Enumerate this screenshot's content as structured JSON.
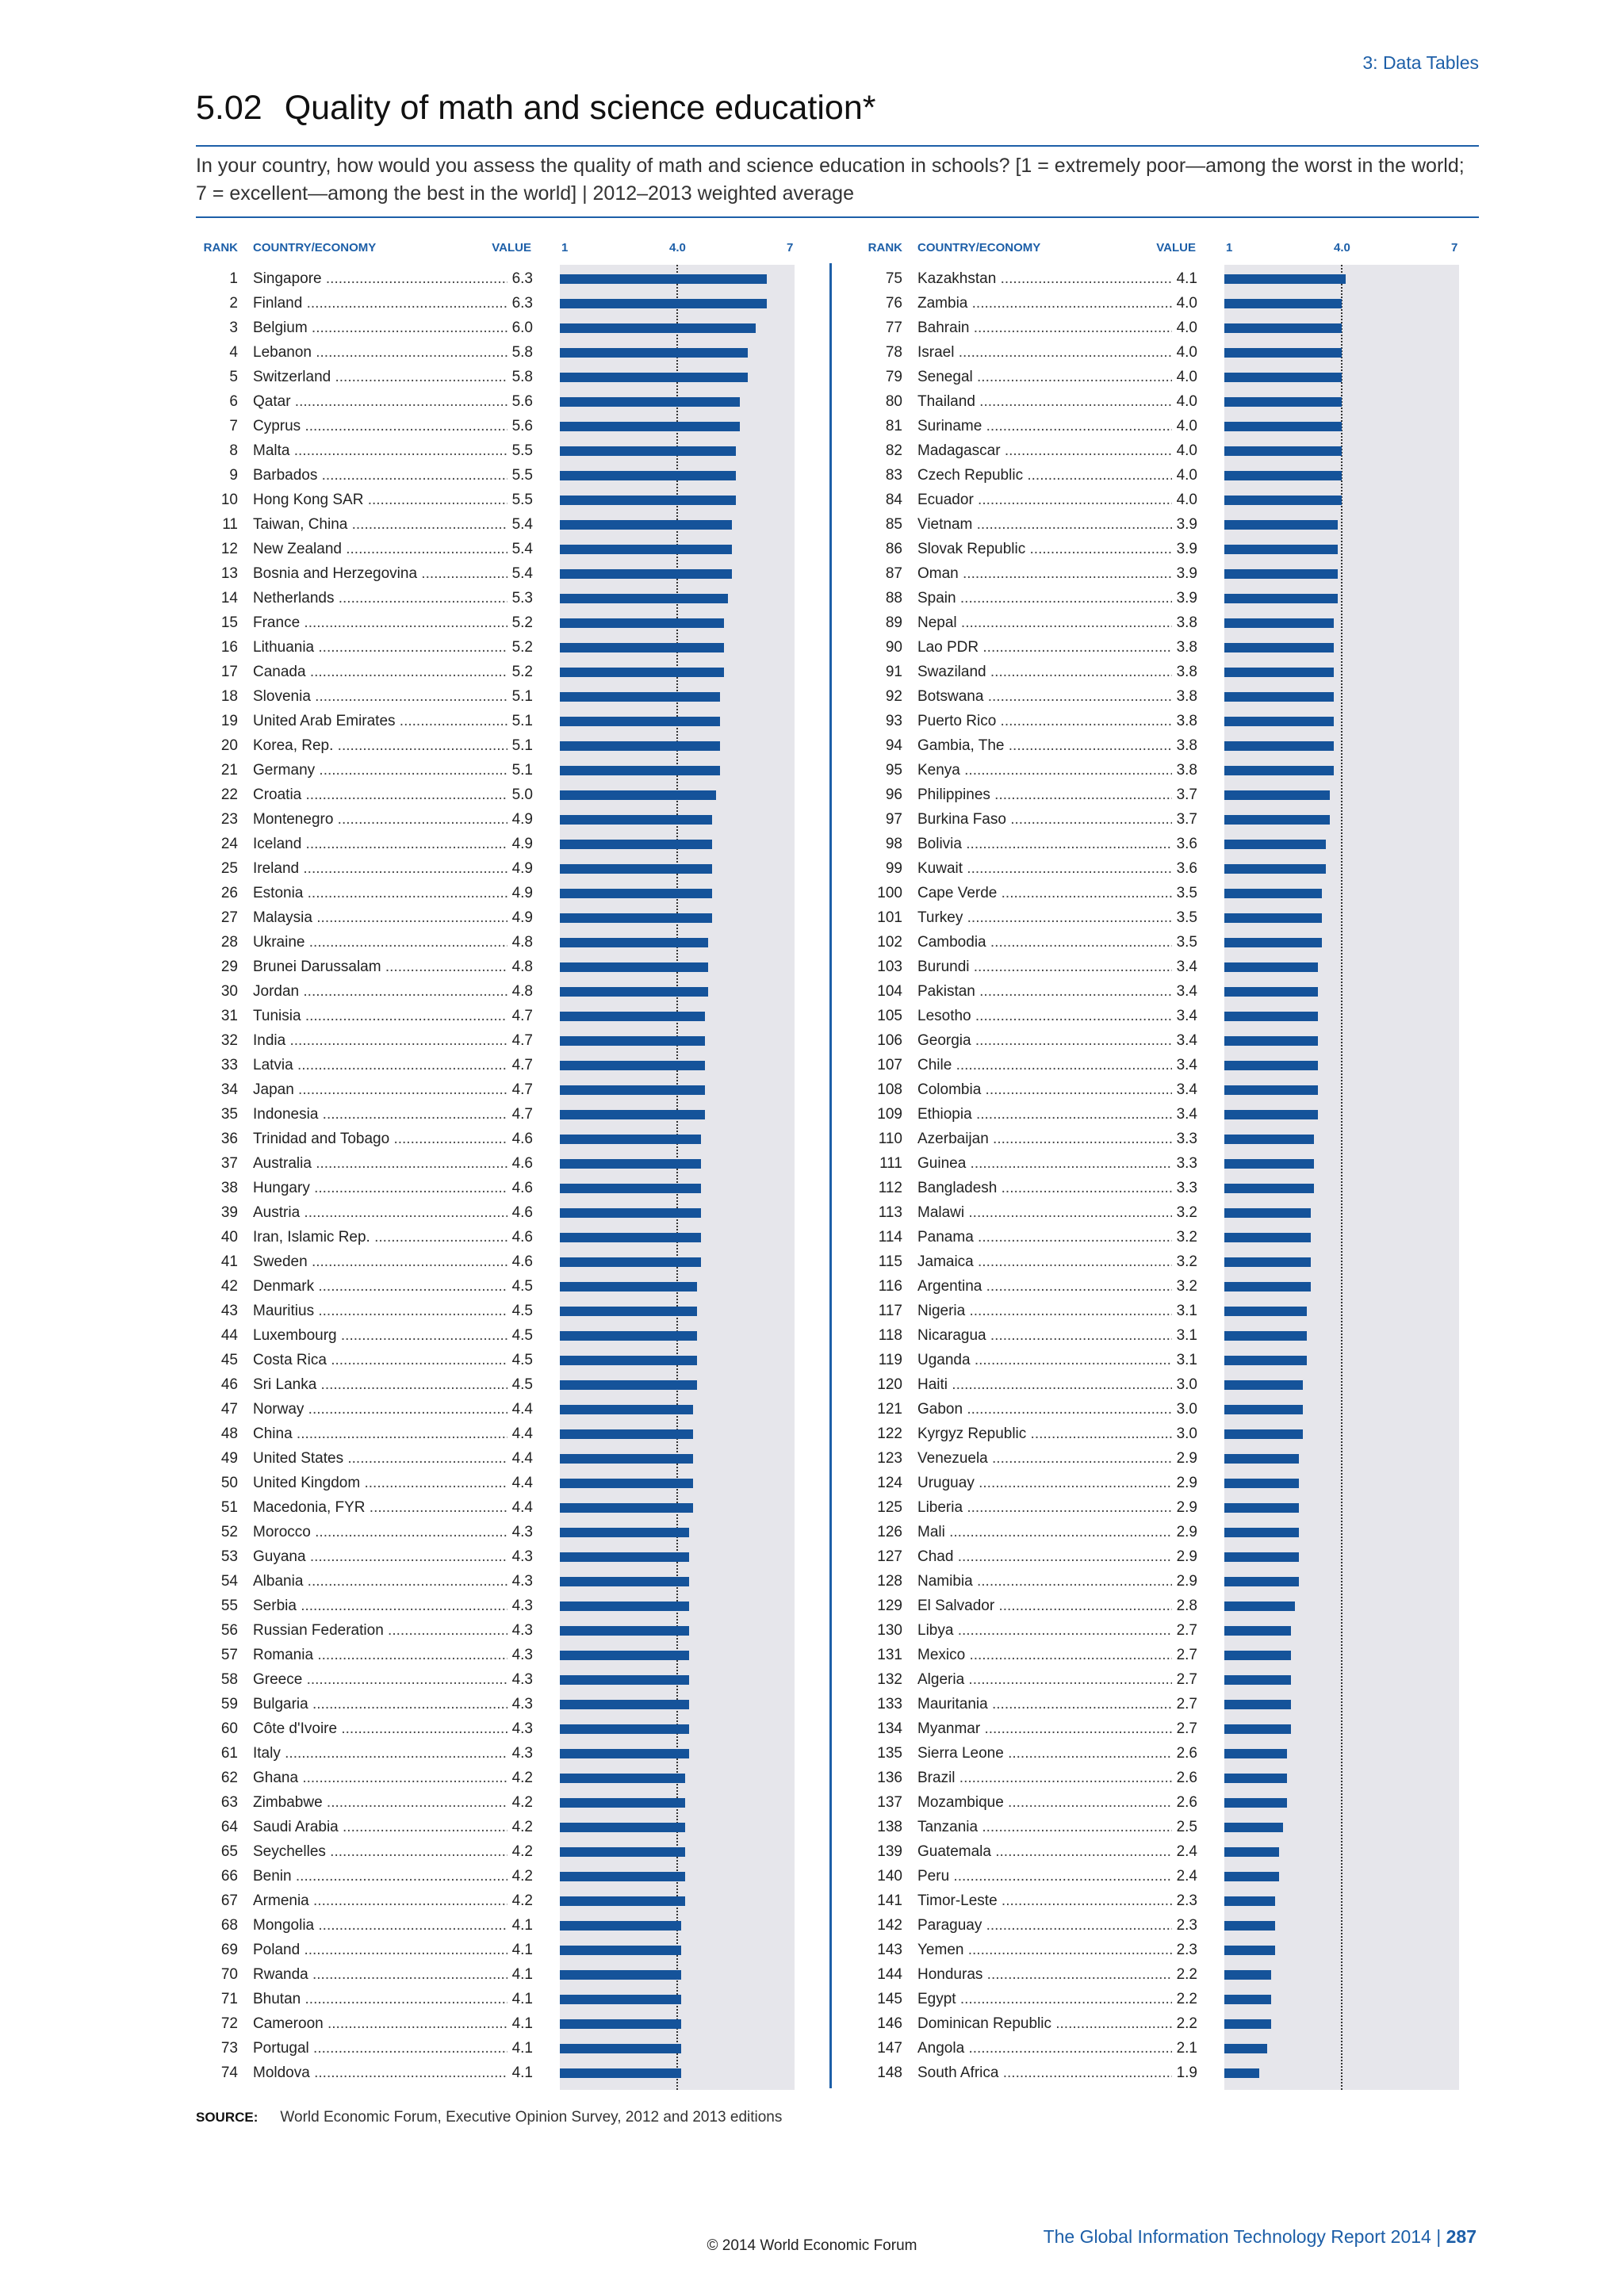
{
  "header": {
    "section": "3: Data Tables",
    "number": "5.02",
    "title": "Quality of math and science education*",
    "question": "In your country, how would you assess the quality of math and science education in schools? [1 = extremely poor—among the worst in the world; 7 = excellent—among the best in the world]  |  2012–2013 weighted average"
  },
  "columns": {
    "rank": "RANK",
    "country": "COUNTRY/ECONOMY",
    "value": "VALUE",
    "axis_min": "1",
    "axis_ref": "4.0",
    "axis_max": "7"
  },
  "chart_data": {
    "type": "bar",
    "orientation": "horizontal",
    "xlim": [
      1,
      7
    ],
    "reference_line": 4.0,
    "colors": {
      "bar": "#15539a",
      "plot_background": "#e6e6eb",
      "accent": "#1d5fa8"
    },
    "rows": [
      {
        "rank": 1,
        "country": "Singapore",
        "value": 6.3
      },
      {
        "rank": 2,
        "country": "Finland",
        "value": 6.3
      },
      {
        "rank": 3,
        "country": "Belgium",
        "value": 6.0
      },
      {
        "rank": 4,
        "country": "Lebanon",
        "value": 5.8
      },
      {
        "rank": 5,
        "country": "Switzerland",
        "value": 5.8
      },
      {
        "rank": 6,
        "country": "Qatar",
        "value": 5.6
      },
      {
        "rank": 7,
        "country": "Cyprus",
        "value": 5.6
      },
      {
        "rank": 8,
        "country": "Malta",
        "value": 5.5
      },
      {
        "rank": 9,
        "country": "Barbados",
        "value": 5.5
      },
      {
        "rank": 10,
        "country": "Hong Kong SAR",
        "value": 5.5
      },
      {
        "rank": 11,
        "country": "Taiwan, China",
        "value": 5.4
      },
      {
        "rank": 12,
        "country": "New Zealand",
        "value": 5.4
      },
      {
        "rank": 13,
        "country": "Bosnia and Herzegovina",
        "value": 5.4
      },
      {
        "rank": 14,
        "country": "Netherlands",
        "value": 5.3
      },
      {
        "rank": 15,
        "country": "France",
        "value": 5.2
      },
      {
        "rank": 16,
        "country": "Lithuania",
        "value": 5.2
      },
      {
        "rank": 17,
        "country": "Canada",
        "value": 5.2
      },
      {
        "rank": 18,
        "country": "Slovenia",
        "value": 5.1
      },
      {
        "rank": 19,
        "country": "United Arab Emirates",
        "value": 5.1
      },
      {
        "rank": 20,
        "country": "Korea, Rep.",
        "value": 5.1
      },
      {
        "rank": 21,
        "country": "Germany",
        "value": 5.1
      },
      {
        "rank": 22,
        "country": "Croatia",
        "value": 5.0
      },
      {
        "rank": 23,
        "country": "Montenegro",
        "value": 4.9
      },
      {
        "rank": 24,
        "country": "Iceland",
        "value": 4.9
      },
      {
        "rank": 25,
        "country": "Ireland",
        "value": 4.9
      },
      {
        "rank": 26,
        "country": "Estonia",
        "value": 4.9
      },
      {
        "rank": 27,
        "country": "Malaysia",
        "value": 4.9
      },
      {
        "rank": 28,
        "country": "Ukraine",
        "value": 4.8
      },
      {
        "rank": 29,
        "country": "Brunei Darussalam",
        "value": 4.8
      },
      {
        "rank": 30,
        "country": "Jordan",
        "value": 4.8
      },
      {
        "rank": 31,
        "country": "Tunisia",
        "value": 4.7
      },
      {
        "rank": 32,
        "country": "India",
        "value": 4.7
      },
      {
        "rank": 33,
        "country": "Latvia",
        "value": 4.7
      },
      {
        "rank": 34,
        "country": "Japan",
        "value": 4.7
      },
      {
        "rank": 35,
        "country": "Indonesia",
        "value": 4.7
      },
      {
        "rank": 36,
        "country": "Trinidad and Tobago",
        "value": 4.6
      },
      {
        "rank": 37,
        "country": "Australia",
        "value": 4.6
      },
      {
        "rank": 38,
        "country": "Hungary",
        "value": 4.6
      },
      {
        "rank": 39,
        "country": "Austria",
        "value": 4.6
      },
      {
        "rank": 40,
        "country": "Iran, Islamic Rep.",
        "value": 4.6
      },
      {
        "rank": 41,
        "country": "Sweden",
        "value": 4.6
      },
      {
        "rank": 42,
        "country": "Denmark",
        "value": 4.5
      },
      {
        "rank": 43,
        "country": "Mauritius",
        "value": 4.5
      },
      {
        "rank": 44,
        "country": "Luxembourg",
        "value": 4.5
      },
      {
        "rank": 45,
        "country": "Costa Rica",
        "value": 4.5
      },
      {
        "rank": 46,
        "country": "Sri Lanka",
        "value": 4.5
      },
      {
        "rank": 47,
        "country": "Norway",
        "value": 4.4
      },
      {
        "rank": 48,
        "country": "China",
        "value": 4.4
      },
      {
        "rank": 49,
        "country": "United States",
        "value": 4.4
      },
      {
        "rank": 50,
        "country": "United Kingdom",
        "value": 4.4
      },
      {
        "rank": 51,
        "country": "Macedonia, FYR",
        "value": 4.4
      },
      {
        "rank": 52,
        "country": "Morocco",
        "value": 4.3
      },
      {
        "rank": 53,
        "country": "Guyana",
        "value": 4.3
      },
      {
        "rank": 54,
        "country": "Albania",
        "value": 4.3
      },
      {
        "rank": 55,
        "country": "Serbia",
        "value": 4.3
      },
      {
        "rank": 56,
        "country": "Russian Federation",
        "value": 4.3
      },
      {
        "rank": 57,
        "country": "Romania",
        "value": 4.3
      },
      {
        "rank": 58,
        "country": "Greece",
        "value": 4.3
      },
      {
        "rank": 59,
        "country": "Bulgaria",
        "value": 4.3
      },
      {
        "rank": 60,
        "country": "Côte d'Ivoire",
        "value": 4.3
      },
      {
        "rank": 61,
        "country": "Italy",
        "value": 4.3
      },
      {
        "rank": 62,
        "country": "Ghana",
        "value": 4.2
      },
      {
        "rank": 63,
        "country": "Zimbabwe",
        "value": 4.2
      },
      {
        "rank": 64,
        "country": "Saudi Arabia",
        "value": 4.2
      },
      {
        "rank": 65,
        "country": "Seychelles",
        "value": 4.2
      },
      {
        "rank": 66,
        "country": "Benin",
        "value": 4.2
      },
      {
        "rank": 67,
        "country": "Armenia",
        "value": 4.2
      },
      {
        "rank": 68,
        "country": "Mongolia",
        "value": 4.1
      },
      {
        "rank": 69,
        "country": "Poland",
        "value": 4.1
      },
      {
        "rank": 70,
        "country": "Rwanda",
        "value": 4.1
      },
      {
        "rank": 71,
        "country": "Bhutan",
        "value": 4.1
      },
      {
        "rank": 72,
        "country": "Cameroon",
        "value": 4.1
      },
      {
        "rank": 73,
        "country": "Portugal",
        "value": 4.1
      },
      {
        "rank": 74,
        "country": "Moldova",
        "value": 4.1
      },
      {
        "rank": 75,
        "country": "Kazakhstan",
        "value": 4.1
      },
      {
        "rank": 76,
        "country": "Zambia",
        "value": 4.0
      },
      {
        "rank": 77,
        "country": "Bahrain",
        "value": 4.0
      },
      {
        "rank": 78,
        "country": "Israel",
        "value": 4.0
      },
      {
        "rank": 79,
        "country": "Senegal",
        "value": 4.0
      },
      {
        "rank": 80,
        "country": "Thailand",
        "value": 4.0
      },
      {
        "rank": 81,
        "country": "Suriname",
        "value": 4.0
      },
      {
        "rank": 82,
        "country": "Madagascar",
        "value": 4.0
      },
      {
        "rank": 83,
        "country": "Czech Republic",
        "value": 4.0
      },
      {
        "rank": 84,
        "country": "Ecuador",
        "value": 4.0
      },
      {
        "rank": 85,
        "country": "Vietnam",
        "value": 3.9
      },
      {
        "rank": 86,
        "country": "Slovak Republic",
        "value": 3.9
      },
      {
        "rank": 87,
        "country": "Oman",
        "value": 3.9
      },
      {
        "rank": 88,
        "country": "Spain",
        "value": 3.9
      },
      {
        "rank": 89,
        "country": "Nepal",
        "value": 3.8
      },
      {
        "rank": 90,
        "country": "Lao PDR",
        "value": 3.8
      },
      {
        "rank": 91,
        "country": "Swaziland",
        "value": 3.8
      },
      {
        "rank": 92,
        "country": "Botswana",
        "value": 3.8
      },
      {
        "rank": 93,
        "country": "Puerto Rico",
        "value": 3.8
      },
      {
        "rank": 94,
        "country": "Gambia, The",
        "value": 3.8
      },
      {
        "rank": 95,
        "country": "Kenya",
        "value": 3.8
      },
      {
        "rank": 96,
        "country": "Philippines",
        "value": 3.7
      },
      {
        "rank": 97,
        "country": "Burkina Faso",
        "value": 3.7
      },
      {
        "rank": 98,
        "country": "Bolivia",
        "value": 3.6
      },
      {
        "rank": 99,
        "country": "Kuwait",
        "value": 3.6
      },
      {
        "rank": 100,
        "country": "Cape Verde",
        "value": 3.5
      },
      {
        "rank": 101,
        "country": "Turkey",
        "value": 3.5
      },
      {
        "rank": 102,
        "country": "Cambodia",
        "value": 3.5
      },
      {
        "rank": 103,
        "country": "Burundi",
        "value": 3.4
      },
      {
        "rank": 104,
        "country": "Pakistan",
        "value": 3.4
      },
      {
        "rank": 105,
        "country": "Lesotho",
        "value": 3.4
      },
      {
        "rank": 106,
        "country": "Georgia",
        "value": 3.4
      },
      {
        "rank": 107,
        "country": "Chile",
        "value": 3.4
      },
      {
        "rank": 108,
        "country": "Colombia",
        "value": 3.4
      },
      {
        "rank": 109,
        "country": "Ethiopia",
        "value": 3.4
      },
      {
        "rank": 110,
        "country": "Azerbaijan",
        "value": 3.3
      },
      {
        "rank": 111,
        "country": "Guinea",
        "value": 3.3
      },
      {
        "rank": 112,
        "country": "Bangladesh",
        "value": 3.3
      },
      {
        "rank": 113,
        "country": "Malawi",
        "value": 3.2
      },
      {
        "rank": 114,
        "country": "Panama",
        "value": 3.2
      },
      {
        "rank": 115,
        "country": "Jamaica",
        "value": 3.2
      },
      {
        "rank": 116,
        "country": "Argentina",
        "value": 3.2
      },
      {
        "rank": 117,
        "country": "Nigeria",
        "value": 3.1
      },
      {
        "rank": 118,
        "country": "Nicaragua",
        "value": 3.1
      },
      {
        "rank": 119,
        "country": "Uganda",
        "value": 3.1
      },
      {
        "rank": 120,
        "country": "Haiti",
        "value": 3.0
      },
      {
        "rank": 121,
        "country": "Gabon",
        "value": 3.0
      },
      {
        "rank": 122,
        "country": "Kyrgyz Republic",
        "value": 3.0
      },
      {
        "rank": 123,
        "country": "Venezuela",
        "value": 2.9
      },
      {
        "rank": 124,
        "country": "Uruguay",
        "value": 2.9
      },
      {
        "rank": 125,
        "country": "Liberia",
        "value": 2.9
      },
      {
        "rank": 126,
        "country": "Mali",
        "value": 2.9
      },
      {
        "rank": 127,
        "country": "Chad",
        "value": 2.9
      },
      {
        "rank": 128,
        "country": "Namibia",
        "value": 2.9
      },
      {
        "rank": 129,
        "country": "El Salvador",
        "value": 2.8
      },
      {
        "rank": 130,
        "country": "Libya",
        "value": 2.7
      },
      {
        "rank": 131,
        "country": "Mexico",
        "value": 2.7
      },
      {
        "rank": 132,
        "country": "Algeria",
        "value": 2.7
      },
      {
        "rank": 133,
        "country": "Mauritania",
        "value": 2.7
      },
      {
        "rank": 134,
        "country": "Myanmar",
        "value": 2.7
      },
      {
        "rank": 135,
        "country": "Sierra Leone",
        "value": 2.6
      },
      {
        "rank": 136,
        "country": "Brazil",
        "value": 2.6
      },
      {
        "rank": 137,
        "country": "Mozambique",
        "value": 2.6
      },
      {
        "rank": 138,
        "country": "Tanzania",
        "value": 2.5
      },
      {
        "rank": 139,
        "country": "Guatemala",
        "value": 2.4
      },
      {
        "rank": 140,
        "country": "Peru",
        "value": 2.4
      },
      {
        "rank": 141,
        "country": "Timor-Leste",
        "value": 2.3
      },
      {
        "rank": 142,
        "country": "Paraguay",
        "value": 2.3
      },
      {
        "rank": 143,
        "country": "Yemen",
        "value": 2.3
      },
      {
        "rank": 144,
        "country": "Honduras",
        "value": 2.2
      },
      {
        "rank": 145,
        "country": "Egypt",
        "value": 2.2
      },
      {
        "rank": 146,
        "country": "Dominican Republic",
        "value": 2.2
      },
      {
        "rank": 147,
        "country": "Angola",
        "value": 2.1
      },
      {
        "rank": 148,
        "country": "South Africa",
        "value": 1.9
      }
    ]
  },
  "source": {
    "label": "SOURCE:",
    "text": "World Economic Forum, Executive Opinion Survey, 2012 and 2013 editions"
  },
  "footer": {
    "report": "The Global Information Technology Report 2014",
    "separator": "|",
    "page": "287",
    "copyright": "© 2014 World Economic Forum"
  }
}
